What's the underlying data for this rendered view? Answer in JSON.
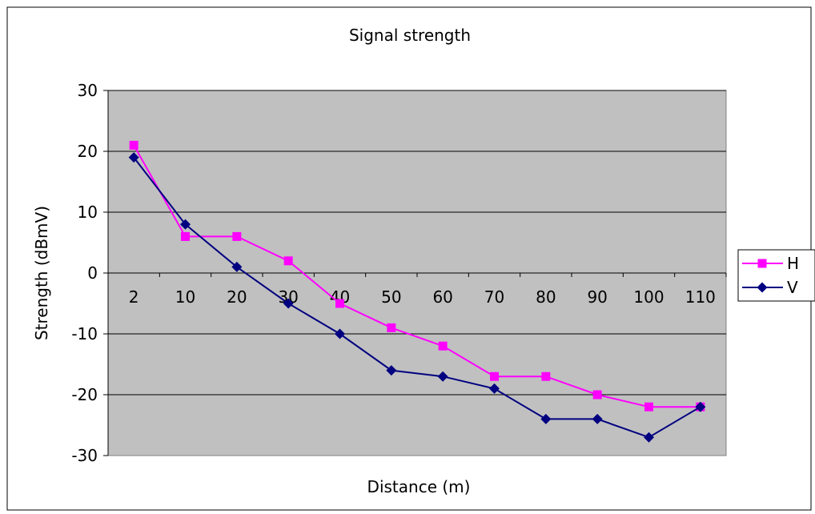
{
  "chart_data": {
    "type": "line",
    "title": "Signal strength",
    "xlabel": "Distance (m)",
    "ylabel": "Strength (dBmV)",
    "categories": [
      "2",
      "10",
      "20",
      "30",
      "40",
      "50",
      "60",
      "70",
      "80",
      "90",
      "100",
      "110"
    ],
    "ylim": [
      -30,
      30
    ],
    "yticks": [
      30,
      20,
      10,
      0,
      -10,
      -20,
      -30
    ],
    "grid": true,
    "legend_position": "right",
    "plot_background": "#c0c0c0",
    "series": [
      {
        "name": "H",
        "color": "#ff00ff",
        "marker": "square",
        "values": [
          21,
          6,
          6,
          2,
          -5,
          -9,
          -12,
          -17,
          -17,
          -20,
          -22,
          -22
        ]
      },
      {
        "name": "V",
        "color": "#000080",
        "marker": "diamond",
        "values": [
          19,
          8,
          1,
          -5,
          -10,
          -16,
          -17,
          -19,
          -24,
          -24,
          -27,
          -22
        ]
      }
    ]
  }
}
